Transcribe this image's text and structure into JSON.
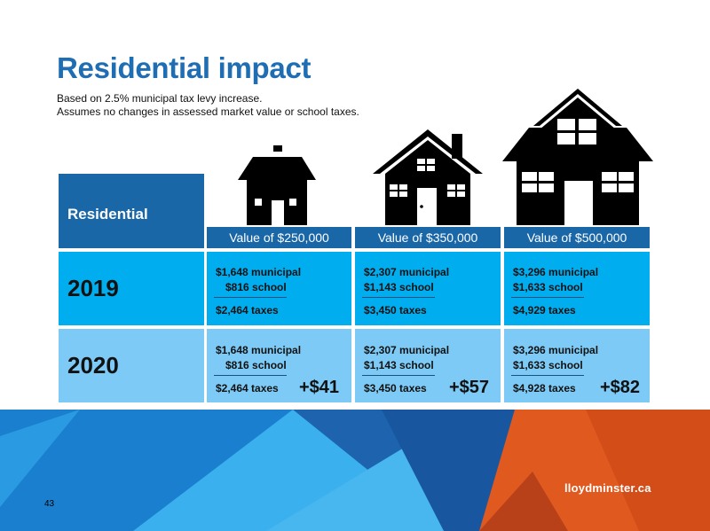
{
  "title": "Residential impact",
  "subtitle": [
    "Based on 2.5% municipal tax levy increase.",
    "Assumes no changes in assessed market value or school taxes."
  ],
  "table": {
    "header_label": "Residential",
    "columns": [
      "Value of $250,000",
      "Value of $350,000",
      "Value of $500,000"
    ],
    "rows": [
      {
        "year": "2019",
        "cells": [
          {
            "municipal": "$1,648 municipal",
            "school": "$816 school",
            "total": "$2,464 taxes",
            "change": ""
          },
          {
            "municipal": "$2,307 municipal",
            "school": "$1,143 school",
            "total": "$3,450 taxes",
            "change": ""
          },
          {
            "municipal": "$3,296 municipal",
            "school": "$1,633 school",
            "total": "$4,929 taxes",
            "change": ""
          }
        ]
      },
      {
        "year": "2020",
        "cells": [
          {
            "municipal": "$1,648 municipal",
            "school": "$816 school",
            "total": "$2,464 taxes",
            "change": "+$41"
          },
          {
            "municipal": "$2,307 municipal",
            "school": "$1,143 school",
            "total": "$3,450 taxes",
            "change": "+$57"
          },
          {
            "municipal": "$3,296 municipal",
            "school": "$1,633 school",
            "total": "$4,928 taxes",
            "change": "+$82"
          }
        ]
      }
    ]
  },
  "icons": [
    "small-house-icon",
    "medium-house-icon",
    "large-house-icon"
  ],
  "footer": {
    "brand": "lloydminster.ca",
    "page_number": "43"
  },
  "colors": {
    "title_blue": "#1f6eb3",
    "header_blue": "#1a67a8",
    "row_2019": "#00adef",
    "row_2020": "#7ccaf5",
    "footer_orange": "#e0591f"
  }
}
